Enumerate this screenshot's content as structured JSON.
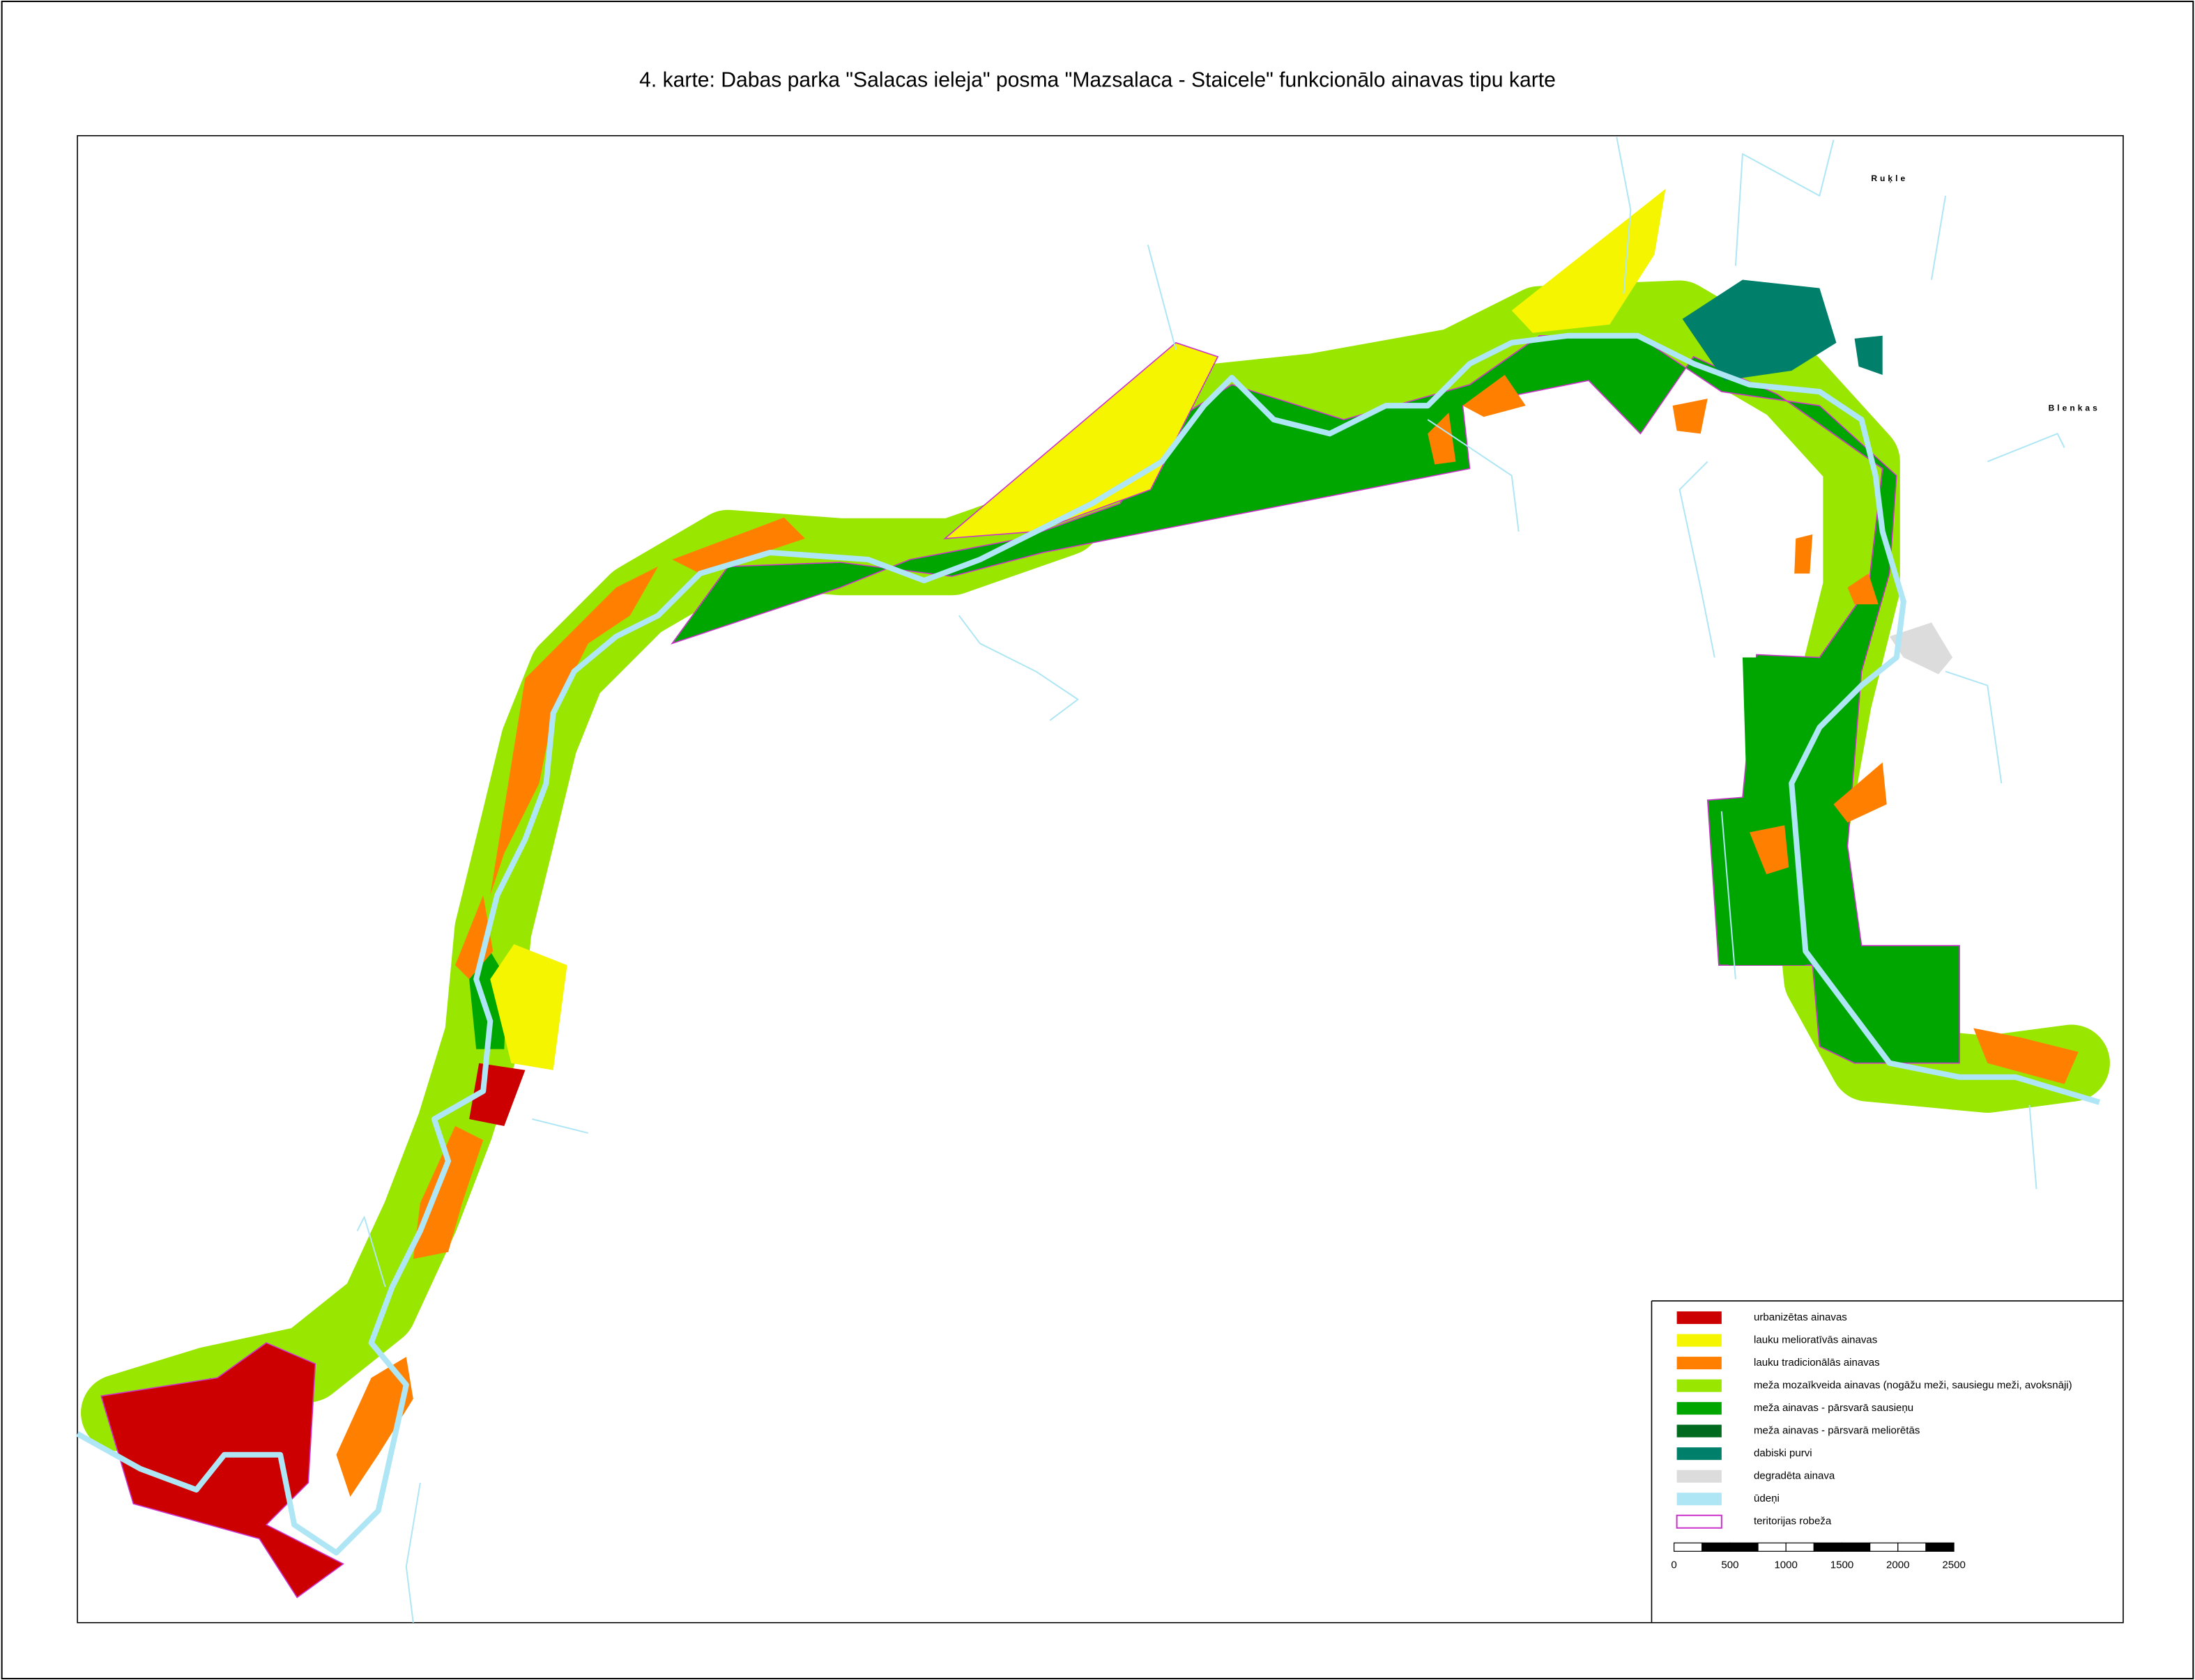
{
  "title": "4. karte: Dabas parka \"Salacas ieleja\" posma \"Mazsalaca - Staicele\" funkcionālo ainavas tipu karte",
  "place_labels": [
    "Ruķle",
    "Blenkas"
  ],
  "legend": [
    {
      "label": "urbanizētas ainavas",
      "color": "#cc0000"
    },
    {
      "label": "lauku melioratīvās ainavas",
      "color": "#f5f500"
    },
    {
      "label": "lauku tradicionālās ainavas",
      "color": "#ff8000"
    },
    {
      "label": "meža mozaīkveida ainavas (nogāžu meži, sausiegu meži, avoksnāji)",
      "color": "#99e600"
    },
    {
      "label": "meža ainavas - pārsvarā sausieņu",
      "color": "#00a600"
    },
    {
      "label": "meža ainavas - pārsvarā meliorētās",
      "color": "#006b1f"
    },
    {
      "label": "dabiski purvi",
      "color": "#00806b"
    },
    {
      "label": "degradēta ainava",
      "color": "#dcdcdc"
    },
    {
      "label": "ūdeņi",
      "color": "#aee6f5"
    },
    {
      "label": "teritorijas robeža",
      "color": "#cc33cc"
    }
  ],
  "scale_bar": {
    "ticks": [
      0,
      500,
      1000,
      1500,
      2000,
      2500
    ]
  }
}
